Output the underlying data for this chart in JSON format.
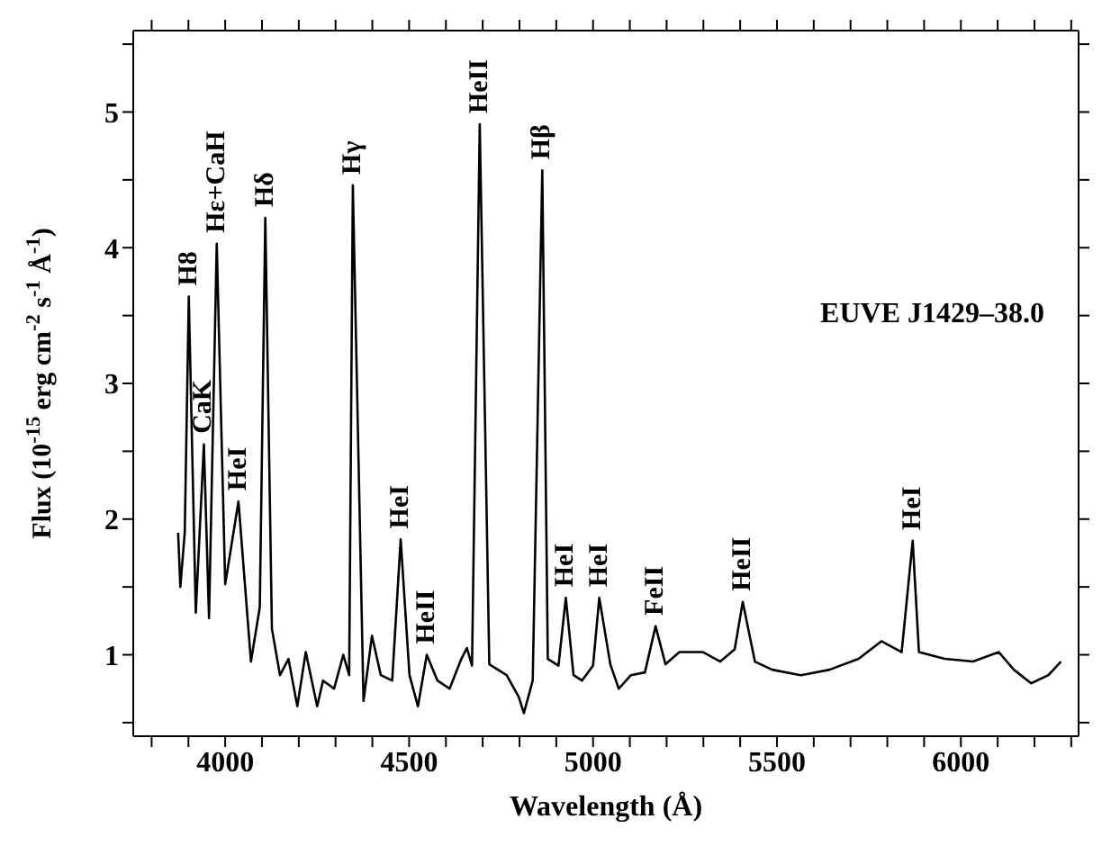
{
  "chart_data": {
    "type": "line",
    "xlabel": "Wavelength (Å)",
    "ylabel": "Flux (10$^{-15}$ erg cm$^{-2}$ s$^{-1}$ Å$^{-1}$)",
    "x": [
      3872,
      3878,
      3890,
      3901,
      3920,
      3942,
      3956,
      3977,
      4000,
      4036,
      4070,
      4094,
      4109,
      4127,
      4149,
      4172,
      4196,
      4219,
      4250,
      4266,
      4296,
      4321,
      4337,
      4347,
      4376,
      4399,
      4423,
      4454,
      4477,
      4501,
      4524,
      4548,
      4577,
      4610,
      4642,
      4657,
      4671,
      4692,
      4718,
      4765,
      4798,
      4812,
      4836,
      4862,
      4877,
      4906,
      4926,
      4947,
      4970,
      5000,
      5017,
      5047,
      5070,
      5103,
      5141,
      5170,
      5197,
      5235,
      5299,
      5346,
      5385,
      5407,
      5440,
      5487,
      5565,
      5643,
      5722,
      5784,
      5839,
      5869,
      5886,
      5956,
      6033,
      6103,
      6144,
      6191,
      6238,
      6272
    ],
    "values": [
      1.9,
      1.5,
      1.9,
      3.64,
      1.31,
      2.55,
      1.27,
      4.03,
      1.52,
      2.13,
      0.95,
      1.35,
      4.22,
      1.19,
      0.85,
      0.97,
      0.62,
      1.02,
      0.62,
      0.81,
      0.75,
      1.0,
      0.85,
      4.46,
      0.66,
      1.14,
      0.85,
      0.81,
      1.85,
      0.85,
      0.62,
      1.0,
      0.81,
      0.75,
      0.97,
      1.05,
      0.92,
      4.91,
      0.93,
      0.85,
      0.69,
      0.57,
      0.81,
      4.57,
      0.97,
      0.92,
      1.42,
      0.85,
      0.81,
      0.92,
      1.42,
      0.93,
      0.75,
      0.85,
      0.87,
      1.21,
      0.93,
      1.02,
      1.02,
      0.95,
      1.04,
      1.39,
      0.95,
      0.89,
      0.85,
      0.89,
      0.97,
      1.1,
      1.02,
      1.84,
      1.02,
      0.97,
      0.95,
      1.02,
      0.89,
      0.79,
      0.85,
      0.95
    ],
    "color": "#000000",
    "xlim": [
      3750,
      6320
    ],
    "xticks": [
      {
        "value": 3800,
        "label": null
      },
      {
        "value": 3900,
        "label": null
      },
      4000,
      {
        "value": 4100,
        "label": null
      },
      {
        "value": 4200,
        "label": null
      },
      {
        "value": 4300,
        "label": null
      },
      {
        "value": 4400,
        "label": null
      },
      4500,
      {
        "value": 4600,
        "label": null
      },
      {
        "value": 4700,
        "label": null
      },
      {
        "value": 4800,
        "label": null
      },
      {
        "value": 4900,
        "label": null
      },
      5000,
      {
        "value": 5100,
        "label": null
      },
      {
        "value": 5200,
        "label": null
      },
      {
        "value": 5300,
        "label": null
      },
      {
        "value": 5400,
        "label": null
      },
      5500,
      {
        "value": 5600,
        "label": null
      },
      {
        "value": 5700,
        "label": null
      },
      {
        "value": 5800,
        "label": null
      },
      {
        "value": 5900,
        "label": null
      },
      6000,
      {
        "value": 6100,
        "label": null
      },
      {
        "value": 6200,
        "label": null
      },
      {
        "value": 6300,
        "label": null
      }
    ],
    "ylim": [
      0.4,
      5.6
    ],
    "yticks": [
      {
        "value": 0.5,
        "label": null
      },
      1,
      {
        "value": 1.5,
        "label": null
      },
      2,
      {
        "value": 2.5,
        "label": null
      },
      3,
      {
        "value": 3.5,
        "label": null
      },
      4,
      {
        "value": 4.5,
        "label": null
      },
      5,
      {
        "value": 5.5,
        "label": null
      }
    ],
    "annotations": [
      {
        "text": "H8",
        "x": 3901,
        "y": 3.64
      },
      {
        "text": "CaK",
        "x": 3942,
        "y": 2.55
      },
      {
        "text": "Hε+CaH",
        "x": 3977,
        "y": 4.03
      },
      {
        "text": "Hδ",
        "x": 4109,
        "y": 4.22
      },
      {
        "text": "Hγ",
        "x": 4347,
        "y": 4.46
      },
      {
        "text": "HeII",
        "x": 4692,
        "y": 4.91
      },
      {
        "text": "Hβ",
        "x": 4862,
        "y": 4.57
      },
      {
        "text": "HeI",
        "x": 4036,
        "y": 2.13
      },
      {
        "text": "HeI",
        "x": 4477,
        "y": 1.85
      },
      {
        "text": "HeII",
        "x": 4548,
        "y": 1.0
      },
      {
        "text": "HeI",
        "x": 4926,
        "y": 1.42
      },
      {
        "text": "HeI",
        "x": 5017,
        "y": 1.42
      },
      {
        "text": "FeII",
        "x": 5170,
        "y": 1.21
      },
      {
        "text": "HeII",
        "x": 5407,
        "y": 1.39
      },
      {
        "text": "HeI",
        "x": 5869,
        "y": 1.84
      },
      "EUVE J1429–38.0"
    ]
  }
}
